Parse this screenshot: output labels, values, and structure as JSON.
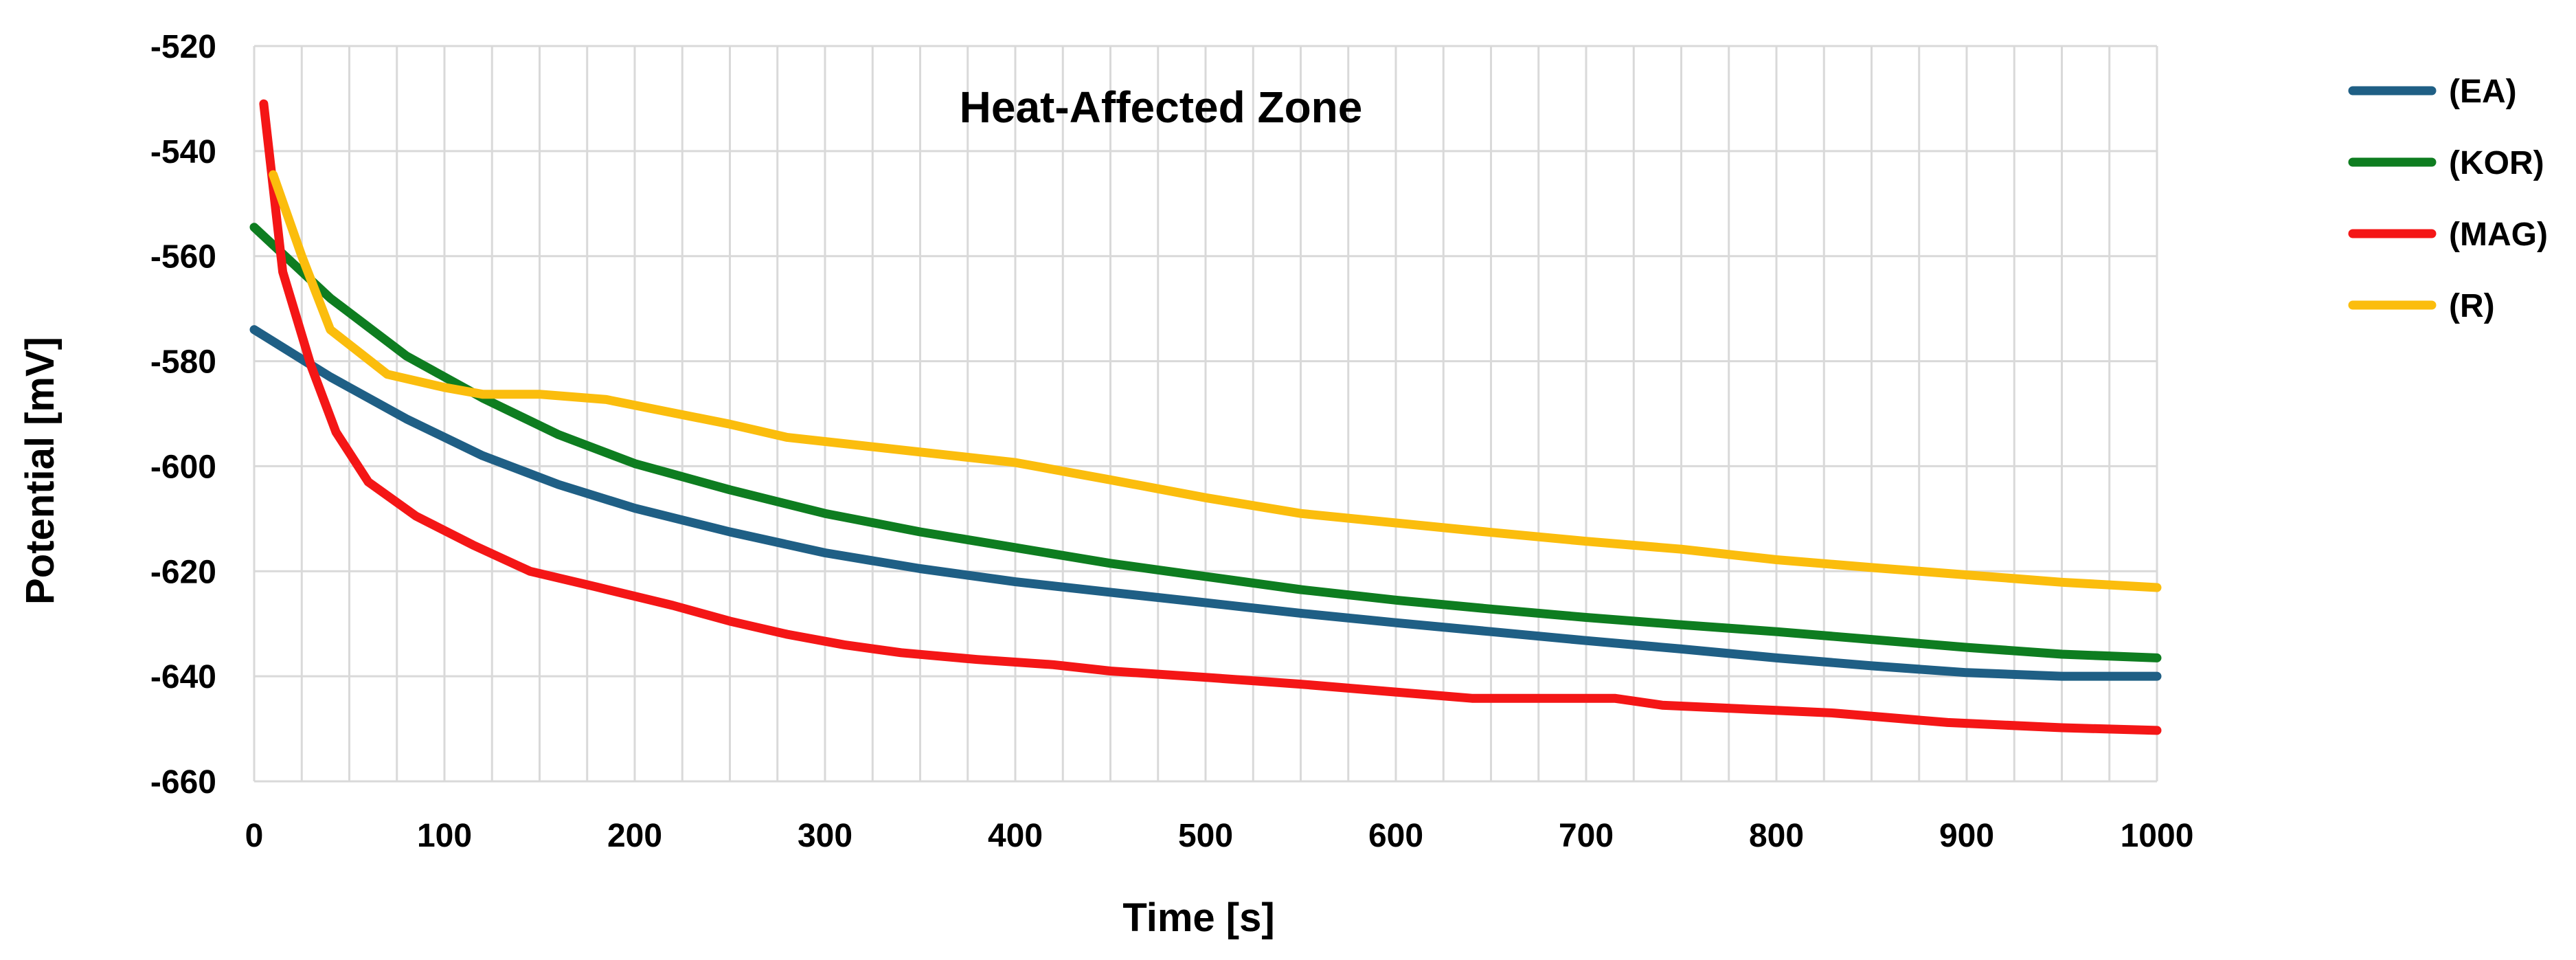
{
  "chart_data": {
    "type": "line",
    "title": "Heat-Affected Zone",
    "xlabel": "Time [s]",
    "ylabel": "Potential [mV]",
    "xlim": [
      0,
      1000
    ],
    "ylim": [
      -660,
      -520
    ],
    "x_major_ticks": [
      0,
      100,
      200,
      300,
      400,
      500,
      600,
      700,
      800,
      900,
      1000
    ],
    "y_major_ticks": [
      -520,
      -540,
      -560,
      -580,
      -600,
      -620,
      -640,
      -660
    ],
    "x_minor_step": 25,
    "grid": true,
    "legend_position": "right",
    "series": [
      {
        "name": "(EA)",
        "color": "#1f5f85",
        "x": [
          0,
          40,
          80,
          120,
          160,
          200,
          250,
          300,
          350,
          400,
          450,
          500,
          550,
          600,
          650,
          700,
          750,
          800,
          850,
          900,
          950,
          1000
        ],
        "values": [
          -574,
          -583,
          -591,
          -598,
          -603.5,
          -608,
          -612.5,
          -616.5,
          -619.5,
          -622,
          -624,
          -626,
          -628,
          -629.8,
          -631.5,
          -633.2,
          -634.8,
          -636.5,
          -638,
          -639.3,
          -640,
          -640
        ]
      },
      {
        "name": "(KOR)",
        "color": "#0e7d20",
        "x": [
          0,
          40,
          80,
          120,
          160,
          200,
          250,
          300,
          350,
          400,
          450,
          500,
          550,
          600,
          650,
          700,
          750,
          800,
          850,
          900,
          950,
          1000
        ],
        "values": [
          -554.5,
          -568,
          -579,
          -587,
          -594,
          -599.5,
          -604.5,
          -609,
          -612.5,
          -615.5,
          -618.5,
          -621,
          -623.5,
          -625.5,
          -627.2,
          -628.8,
          -630.2,
          -631.5,
          -633,
          -634.5,
          -635.8,
          -636.5
        ]
      },
      {
        "name": "(MAG)",
        "color": "#f41616",
        "x": [
          5,
          15,
          30,
          43,
          60,
          85,
          115,
          145,
          180,
          220,
          250,
          280,
          310,
          340,
          380,
          420,
          450,
          500,
          550,
          600,
          640,
          680,
          715,
          740,
          800,
          830,
          890,
          950,
          1000
        ],
        "values": [
          -531,
          -563,
          -581,
          -593.5,
          -603,
          -609.5,
          -615,
          -620,
          -623,
          -626.5,
          -629.5,
          -632,
          -634,
          -635.5,
          -636.8,
          -637.8,
          -639,
          -640.2,
          -641.5,
          -643,
          -644.2,
          -644.2,
          -644.2,
          -645.5,
          -646.5,
          -647,
          -648.8,
          -649.8,
          -650.3
        ]
      },
      {
        "name": "(R)",
        "color": "#fbbd0d",
        "x": [
          10,
          25,
          40,
          70,
          100,
          120,
          150,
          185,
          250,
          280,
          310,
          350,
          400,
          450,
          500,
          550,
          600,
          650,
          700,
          750,
          800,
          850,
          900,
          950,
          1000
        ],
        "values": [
          -544.5,
          -560,
          -574,
          -582.5,
          -585,
          -586.3,
          -586.3,
          -587.3,
          -592,
          -594.5,
          -595.7,
          -597.3,
          -599.3,
          -602.6,
          -606,
          -609,
          -610.8,
          -612.6,
          -614.3,
          -615.8,
          -617.8,
          -619.3,
          -620.7,
          -622.1,
          -623.1
        ]
      }
    ]
  }
}
